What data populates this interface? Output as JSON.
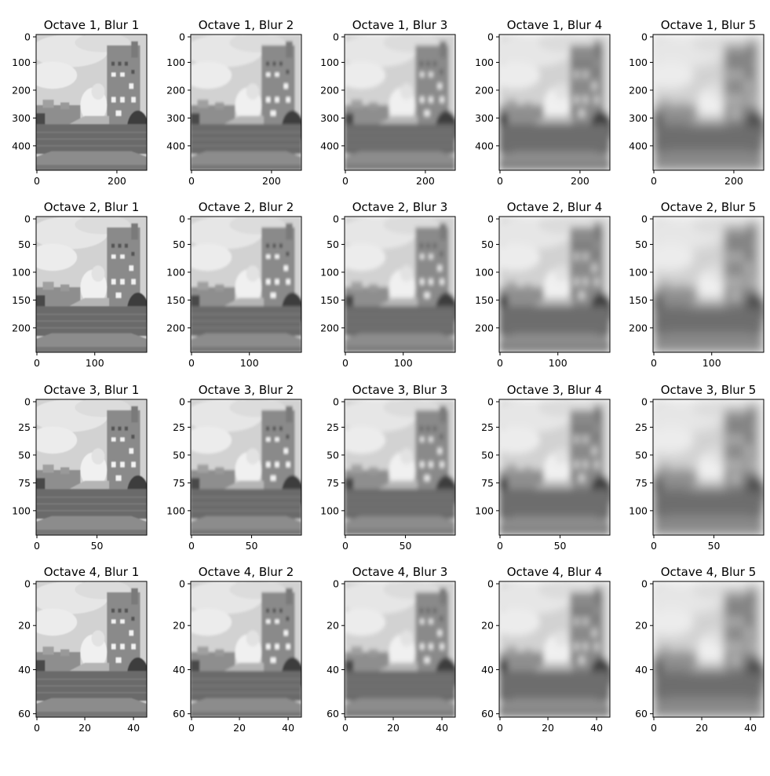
{
  "figure": {
    "rows": [
      {
        "octave": 1,
        "y_ticks": [
          "0",
          "100",
          "200",
          "300",
          "400"
        ],
        "x_ticks": [
          "0",
          "200"
        ],
        "panels": [
          {
            "title": "Octave 1, Blur 1",
            "blur": 1
          },
          {
            "title": "Octave 1, Blur 2",
            "blur": 2
          },
          {
            "title": "Octave 1, Blur 3",
            "blur": 3
          },
          {
            "title": "Octave 1, Blur 4",
            "blur": 4
          },
          {
            "title": "Octave 1, Blur 5",
            "blur": 5
          }
        ]
      },
      {
        "octave": 2,
        "y_ticks": [
          "0",
          "50",
          "100",
          "150",
          "200"
        ],
        "x_ticks": [
          "0",
          "100"
        ],
        "panels": [
          {
            "title": "Octave 2, Blur 1",
            "blur": 1
          },
          {
            "title": "Octave 2, Blur 2",
            "blur": 2
          },
          {
            "title": "Octave 2, Blur 3",
            "blur": 3
          },
          {
            "title": "Octave 2, Blur 4",
            "blur": 4
          },
          {
            "title": "Octave 2, Blur 5",
            "blur": 5
          }
        ]
      },
      {
        "octave": 3,
        "y_ticks": [
          "0",
          "25",
          "50",
          "75",
          "100"
        ],
        "x_ticks": [
          "0",
          "50"
        ],
        "panels": [
          {
            "title": "Octave 3, Blur 1",
            "blur": 1
          },
          {
            "title": "Octave 3, Blur 2",
            "blur": 2
          },
          {
            "title": "Octave 3, Blur 3",
            "blur": 3
          },
          {
            "title": "Octave 3, Blur 4",
            "blur": 4
          },
          {
            "title": "Octave 3, Blur 5",
            "blur": 5
          }
        ]
      },
      {
        "octave": 4,
        "y_ticks": [
          "0",
          "20",
          "40",
          "60"
        ],
        "x_ticks": [
          "0",
          "20",
          "40"
        ],
        "panels": [
          {
            "title": "Octave 4, Blur 1",
            "blur": 1
          },
          {
            "title": "Octave 4, Blur 2",
            "blur": 2
          },
          {
            "title": "Octave 4, Blur 3",
            "blur": 3
          },
          {
            "title": "Octave 4, Blur 4",
            "blur": 4
          },
          {
            "title": "Octave 4, Blur 5",
            "blur": 5
          }
        ]
      }
    ]
  }
}
